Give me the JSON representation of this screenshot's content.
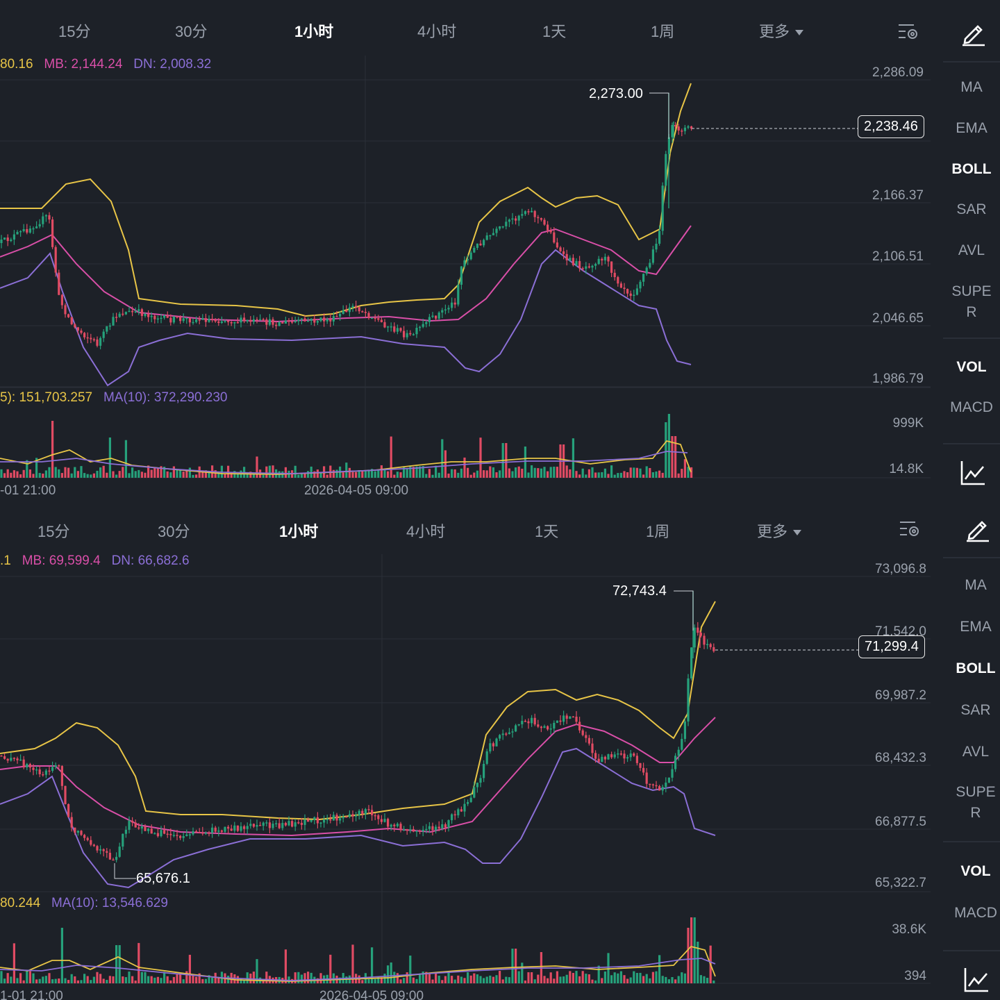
{
  "timeframes": [
    "15分",
    "30分",
    "1小时",
    "4小时",
    "1天",
    "1周",
    "更多"
  ],
  "indicators_main": [
    "MA",
    "EMA",
    "BOLL",
    "SAR",
    "AVL",
    "SUPER"
  ],
  "indicators_sub": [
    "VOL",
    "MACD"
  ],
  "icons": {
    "draw": "pencil-icon",
    "settings": "chart-settings-icon",
    "indicator": "line-chart-icon"
  },
  "colors": {
    "up": "#26a17b",
    "down": "#e04b63",
    "boll_up": "#e8c547",
    "boll_mb": "#d94fa8",
    "boll_dn": "#8b6fd6",
    "ma5": "#e8c547",
    "ma10": "#8b6fd6"
  },
  "panels": [
    {
      "active_tab": "1小时",
      "active_indicator": "BOLL",
      "active_sub_indicator": "VOL",
      "legend": {
        "up": "80.16",
        "mb": "MB: 2,144.24",
        "dn": "DN: 2,008.32"
      },
      "vol_legend": {
        "ma5": "5): 151,703.257",
        "ma10": "MA(10): 372,290.230"
      },
      "y_labels": [
        "2,286.09",
        "2,166.37",
        "2,106.51",
        "2,046.65",
        "1,986.79"
      ],
      "vol_labels": [
        "999K",
        "14.8K"
      ],
      "x_labels": [
        "-01 21:00",
        "2026-04-05 09:00"
      ],
      "last_price": "2,238.46",
      "high_marker": "2,273.00",
      "low_marker": ""
    },
    {
      "active_tab": "1小时",
      "active_indicator": "BOLL",
      "active_sub_indicator": "VOL",
      "legend": {
        "up": ".1",
        "mb": "MB: 69,599.4",
        "dn": "DN: 66,682.6"
      },
      "vol_legend": {
        "ma5": "80.244",
        "ma10": "MA(10): 13,546.629"
      },
      "y_labels": [
        "73,096.8",
        "71,542.0",
        "69,987.2",
        "68,432.3",
        "66,877.5",
        "65,322.7"
      ],
      "vol_labels": [
        "38.6K",
        "394"
      ],
      "x_labels": [
        "1-01 21:00",
        "2026-04-05 09:00"
      ],
      "last_price": "71,299.4",
      "high_marker": "72,743.4",
      "low_marker": "65,676.1"
    }
  ]
}
